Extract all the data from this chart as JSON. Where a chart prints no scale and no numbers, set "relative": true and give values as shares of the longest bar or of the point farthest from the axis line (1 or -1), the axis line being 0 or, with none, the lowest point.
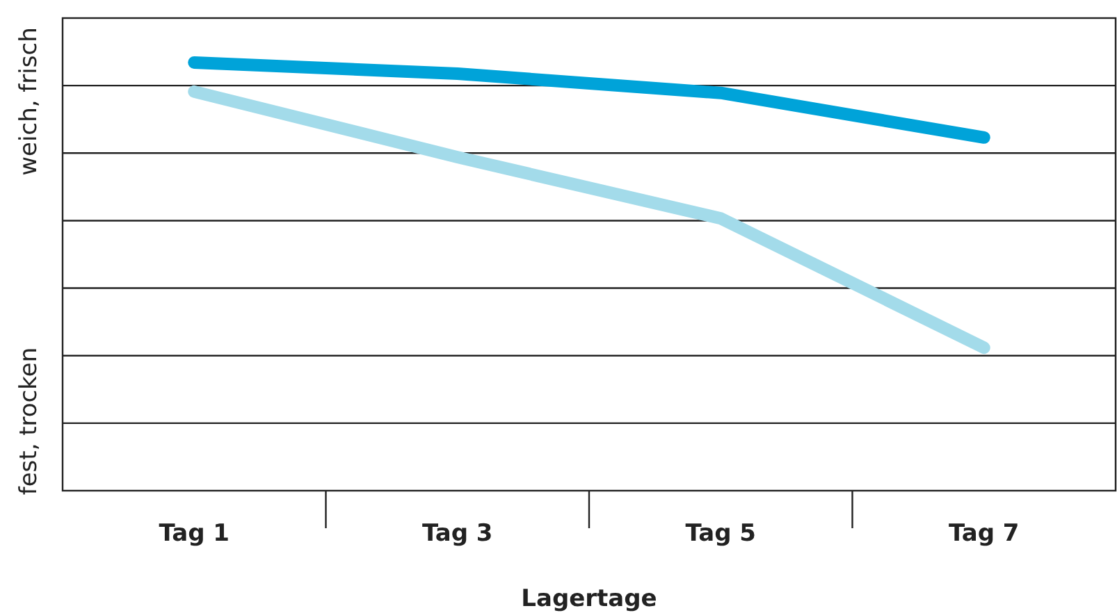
{
  "chart_data": {
    "type": "line",
    "relative": true,
    "xlabel": "Lagertage",
    "categories": [
      "Tag 1",
      "Tag 3",
      "Tag 5",
      "Tag 7"
    ],
    "series": [
      {
        "color": "#00a3d9",
        "values": [
          1,
          0.974,
          0.929,
          0.825
        ]
      },
      {
        "color": "#a3dbea",
        "values": [
          0.932,
          0.779,
          0.636,
          0.334
        ]
      }
    ],
    "annotations": [
      "weich, frisch",
      "fest, trocken"
    ],
    "grid": true
  }
}
